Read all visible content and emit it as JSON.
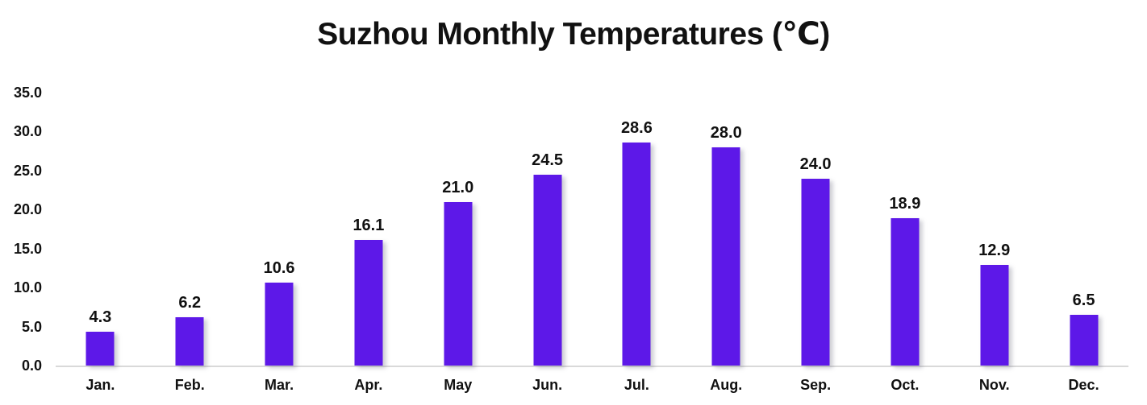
{
  "chart_data": {
    "type": "bar",
    "title": "Suzhou Monthly Temperatures (℃)",
    "xlabel": "",
    "ylabel": "",
    "categories": [
      "Jan.",
      "Feb.",
      "Mar.",
      "Apr.",
      "May",
      "Jun.",
      "Jul.",
      "Aug.",
      "Sep.",
      "Oct.",
      "Nov.",
      "Dec."
    ],
    "values": [
      4.3,
      6.2,
      10.6,
      16.1,
      21.0,
      24.5,
      28.6,
      28.0,
      24.0,
      18.9,
      12.9,
      6.5
    ],
    "value_labels": [
      "4.3",
      "6.2",
      "10.6",
      "16.1",
      "21.0",
      "24.5",
      "28.6",
      "28.0",
      "24.0",
      "18.9",
      "12.9",
      "6.5"
    ],
    "ylim": [
      0,
      35
    ],
    "y_ticks": [
      0,
      5,
      10,
      15,
      20,
      25,
      30,
      35
    ],
    "y_tick_labels": [
      "0.0",
      "5.0",
      "10.0",
      "15.0",
      "20.0",
      "25.0",
      "30.0",
      "35.0"
    ],
    "grid": false,
    "legend": false,
    "bar_color": "#5D18E8",
    "axis_line_color": "#D9D9D9",
    "text_color": "#111111"
  }
}
